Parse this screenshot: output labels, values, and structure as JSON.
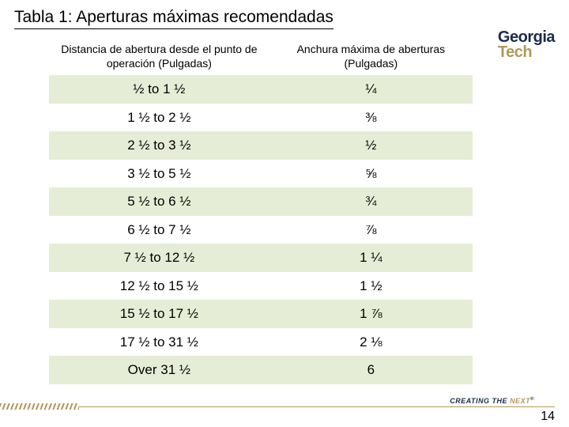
{
  "title": "Tabla 1: Aperturas máximas recomendadas",
  "logo": {
    "line1": "Georgia",
    "line2": "Tech"
  },
  "table": {
    "columns": [
      "Distancia de abertura desde el punto de operación (Pulgadas)",
      "Anchura máxima de aberturas (Pulgadas)"
    ],
    "rows": [
      [
        "½ to 1 ½",
        "¼"
      ],
      [
        "1 ½ to 2 ½",
        "⅜"
      ],
      [
        "2 ½ to 3 ½",
        "½"
      ],
      [
        "3 ½ to 5 ½",
        "⅝"
      ],
      [
        "5 ½ to 6 ½",
        "¾"
      ],
      [
        "6 ½ to 7 ½",
        "⅞"
      ],
      [
        "7 ½ to 12 ½",
        "1 ¼"
      ],
      [
        "12 ½ to 15 ½",
        "1 ½"
      ],
      [
        "15 ½ to 17 ½",
        "1 ⅞"
      ],
      [
        "17 ½ to 31 ½",
        "2 ⅛"
      ],
      [
        "Over 31 ½",
        "6"
      ]
    ],
    "header_fontsize": 14,
    "cell_fontsize": 17,
    "row_odd_bg": "#e6edd6",
    "row_even_bg": "#ffffff",
    "text_color": "#000000"
  },
  "footer": {
    "brand_creating": "CREATING THE",
    "brand_next": "NEXT",
    "page_number": "14",
    "accent_color": "#b4975a",
    "navy_color": "#1a2b4a"
  }
}
